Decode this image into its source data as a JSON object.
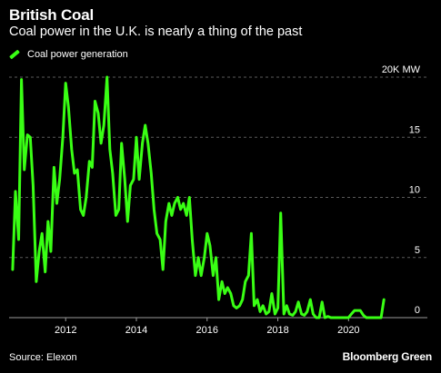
{
  "header": {
    "title": "British Coal",
    "subtitle": "Coal power in the U.K. is nearly a thing of the past"
  },
  "footer": {
    "source": "Source: Elexon",
    "brand": "Bloomberg Green"
  },
  "colors": {
    "background": "#000000",
    "line": "#39ff14",
    "grid": "#5a5a5a",
    "axis": "#9a9a9a",
    "text": "#ffffff"
  },
  "chart_data": {
    "type": "line",
    "title": "British Coal",
    "subtitle": "Coal power in the U.K. is nearly a thing of the past",
    "xlabel": "",
    "ylabel": "",
    "xlim": [
      2010.4,
      2021.2
    ],
    "ylim": [
      0,
      20
    ],
    "y_unit_label": "20K MW",
    "y_ticks": [
      {
        "value": 20,
        "label": "20K MW"
      },
      {
        "value": 15,
        "label": "15"
      },
      {
        "value": 10,
        "label": "10"
      },
      {
        "value": 5,
        "label": "5"
      },
      {
        "value": 0,
        "label": "0"
      }
    ],
    "x_ticks": [
      {
        "value": 2012,
        "label": "2012"
      },
      {
        "value": 2014,
        "label": "2014"
      },
      {
        "value": 2016,
        "label": "2016"
      },
      {
        "value": 2018,
        "label": "2018"
      },
      {
        "value": 2020,
        "label": "2020"
      }
    ],
    "grid": true,
    "legend": "top-left",
    "series": [
      {
        "name": "Coal power generation",
        "color": "#39ff14",
        "x": [
          2010.5,
          2010.58,
          2010.67,
          2010.75,
          2010.83,
          2010.92,
          2011.0,
          2011.08,
          2011.17,
          2011.25,
          2011.33,
          2011.42,
          2011.5,
          2011.58,
          2011.67,
          2011.75,
          2011.83,
          2011.92,
          2012.0,
          2012.08,
          2012.17,
          2012.25,
          2012.33,
          2012.42,
          2012.5,
          2012.58,
          2012.67,
          2012.75,
          2012.83,
          2012.92,
          2013.0,
          2013.08,
          2013.17,
          2013.25,
          2013.33,
          2013.42,
          2013.5,
          2013.58,
          2013.67,
          2013.75,
          2013.83,
          2013.92,
          2014.0,
          2014.08,
          2014.17,
          2014.25,
          2014.33,
          2014.42,
          2014.5,
          2014.58,
          2014.67,
          2014.75,
          2014.83,
          2014.92,
          2015.0,
          2015.08,
          2015.17,
          2015.25,
          2015.33,
          2015.42,
          2015.5,
          2015.58,
          2015.67,
          2015.75,
          2015.83,
          2015.92,
          2016.0,
          2016.08,
          2016.17,
          2016.25,
          2016.33,
          2016.42,
          2016.5,
          2016.58,
          2016.67,
          2016.75,
          2016.83,
          2016.92,
          2017.0,
          2017.08,
          2017.17,
          2017.25,
          2017.33,
          2017.42,
          2017.5,
          2017.58,
          2017.67,
          2017.75,
          2017.83,
          2017.92,
          2018.0,
          2018.08,
          2018.17,
          2018.25,
          2018.33,
          2018.42,
          2018.5,
          2018.58,
          2018.67,
          2018.75,
          2018.83,
          2018.92,
          2019.0,
          2019.08,
          2019.17,
          2019.25,
          2019.33,
          2019.42,
          2019.5,
          2019.58,
          2019.67,
          2019.75,
          2019.83,
          2019.92,
          2020.0,
          2020.08,
          2020.17,
          2020.25,
          2020.33,
          2020.42,
          2020.5,
          2020.58,
          2020.67,
          2020.75,
          2020.83,
          2020.92,
          2021.0
        ],
        "values": [
          4.0,
          10.5,
          6.5,
          19.8,
          12.3,
          15.2,
          15.0,
          11.0,
          3.0,
          5.5,
          7.0,
          3.8,
          8.0,
          5.5,
          12.5,
          9.5,
          11.5,
          15.0,
          19.5,
          17.5,
          14.0,
          12.0,
          12.3,
          9.0,
          8.5,
          10.0,
          13.0,
          12.5,
          18.0,
          17.0,
          14.5,
          16.0,
          20.0,
          14.0,
          12.0,
          8.5,
          9.0,
          14.5,
          11.5,
          8.0,
          11.0,
          11.5,
          15.0,
          11.5,
          14.5,
          16.0,
          14.5,
          12.0,
          9.0,
          7.0,
          6.5,
          4.0,
          8.0,
          9.5,
          8.5,
          9.5,
          10.0,
          9.0,
          9.5,
          8.5,
          10.0,
          6.5,
          3.5,
          5.0,
          3.5,
          5.0,
          7.0,
          6.0,
          3.5,
          5.0,
          1.5,
          3.0,
          2.0,
          2.5,
          2.0,
          1.0,
          0.8,
          1.0,
          1.5,
          3.0,
          3.5,
          7.0,
          1.0,
          1.5,
          0.5,
          1.0,
          0.3,
          0.5,
          2.0,
          0.3,
          0.8,
          8.7,
          0.3,
          1.0,
          0.3,
          0.2,
          0.5,
          1.3,
          0.3,
          0.2,
          0.5,
          1.5,
          0.3,
          0.0,
          0.0,
          1.3,
          0.0,
          0.1,
          0.0,
          0.0,
          0.0,
          0.0,
          0.0,
          0.0,
          0.0,
          0.3,
          0.6,
          0.6,
          0.6,
          0.2,
          0.0,
          0.0,
          0.0,
          0.0,
          0.0,
          0.0,
          1.5
        ]
      }
    ]
  }
}
